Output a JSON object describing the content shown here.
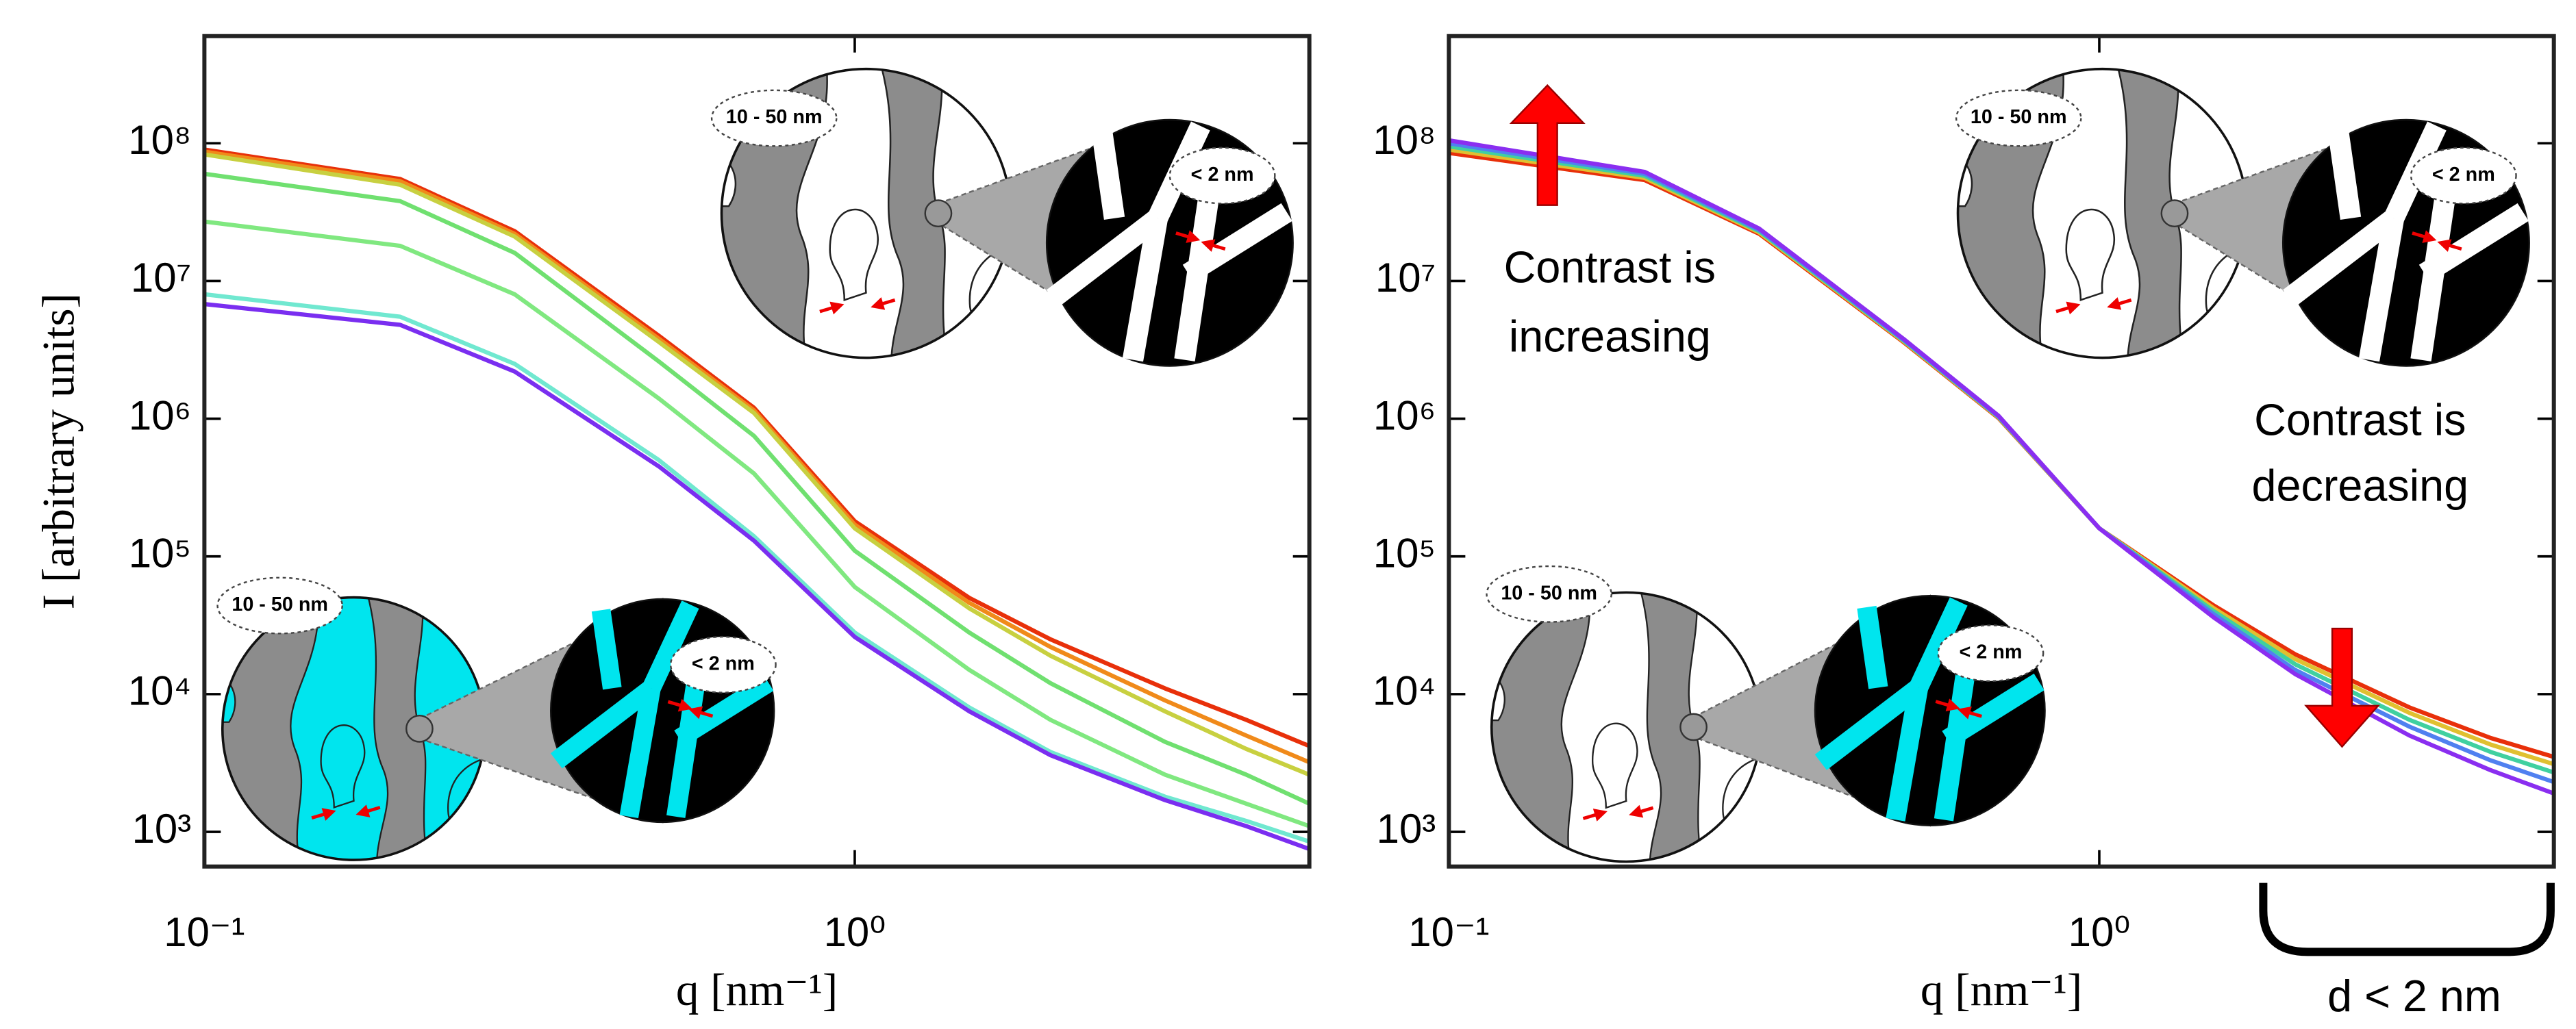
{
  "chart_data": [
    {
      "type": "line",
      "xlabel": "q [nm⁻¹]",
      "ylabel": "I [arbitrary units]",
      "log_x": true,
      "log_y": true,
      "xlim": [
        0.1,
        5
      ],
      "ylim": [
        560,
        600000000
      ],
      "xticks": [
        {
          "value": 0.1,
          "label": "10⁻¹"
        },
        {
          "value": 1,
          "label": "10⁰"
        }
      ],
      "yticks": [
        {
          "value": 1000,
          "label": "10³"
        },
        {
          "value": 10000,
          "label": "10⁴"
        },
        {
          "value": 100000,
          "label": "10⁵"
        },
        {
          "value": 1000000,
          "label": "10⁶"
        },
        {
          "value": 10000000,
          "label": "10⁷"
        },
        {
          "value": 100000000,
          "label": "10⁸"
        }
      ],
      "x": [
        0.1,
        0.2,
        0.3,
        0.5,
        0.7,
        1,
        1.5,
        2,
        3,
        4,
        5
      ],
      "series": [
        {
          "color": "#e8300a",
          "values": [
            90000000,
            55000000,
            23000000,
            4000000,
            1200000,
            180000,
            50000,
            25000,
            11000,
            6500,
            4200
          ]
        },
        {
          "color": "#f08a1a",
          "values": [
            87000000,
            53000000,
            22000000,
            3800000,
            1150000,
            170000,
            46000,
            22000,
            9000,
            5000,
            3200
          ]
        },
        {
          "color": "#c8d040",
          "values": [
            83000000,
            50000000,
            21000000,
            3600000,
            1100000,
            160000,
            42000,
            19000,
            7500,
            4000,
            2600
          ]
        },
        {
          "color": "#70e070",
          "values": [
            60000000,
            38000000,
            16000000,
            2600000,
            750000,
            110000,
            28000,
            12000,
            4500,
            2600,
            1600
          ]
        },
        {
          "color": "#80e880",
          "values": [
            27000000,
            18000000,
            8000000,
            1400000,
            400000,
            60000,
            15000,
            6500,
            2600,
            1600,
            1100
          ]
        },
        {
          "color": "#70e8d0",
          "values": [
            8000000,
            5500000,
            2500000,
            500000,
            140000,
            28000,
            8000,
            3800,
            1800,
            1200,
            850
          ]
        },
        {
          "color": "#7a2ef0",
          "values": [
            6800000,
            4800000,
            2200000,
            450000,
            130000,
            26000,
            7500,
            3600,
            1700,
            1100,
            750
          ]
        }
      ],
      "annotations": [
        "10 - 50 nm",
        "< 2 nm",
        "10 - 50 nm",
        "< 2 nm"
      ]
    },
    {
      "type": "line",
      "xlabel": "q [nm⁻¹]",
      "log_x": true,
      "log_y": true,
      "xlim": [
        0.1,
        5
      ],
      "ylim": [
        560,
        600000000
      ],
      "xticks": [
        {
          "value": 0.1,
          "label": "10⁻¹"
        },
        {
          "value": 1,
          "label": "10⁰"
        }
      ],
      "yticks": [
        {
          "value": 1000,
          "label": "10³"
        },
        {
          "value": 10000,
          "label": "10⁴"
        },
        {
          "value": 100000,
          "label": "10⁵"
        },
        {
          "value": 1000000,
          "label": "10⁶"
        },
        {
          "value": 10000000,
          "label": "10⁷"
        },
        {
          "value": 100000000,
          "label": "10⁸"
        }
      ],
      "x": [
        0.1,
        0.2,
        0.3,
        0.5,
        0.7,
        1,
        1.5,
        2,
        3,
        4,
        5
      ],
      "series": [
        {
          "color": "#e8300a",
          "values": [
            85000000,
            54000000,
            22000000,
            3600000,
            1010000,
            160000,
            44000,
            19500,
            8000,
            4800,
            3500
          ]
        },
        {
          "color": "#e0c030",
          "values": [
            90000000,
            56000000,
            22500000,
            3650000,
            1020000,
            160000,
            42000,
            18000,
            7300,
            4300,
            3100
          ]
        },
        {
          "color": "#40d0a0",
          "values": [
            95000000,
            58000000,
            23000000,
            3700000,
            1030000,
            160000,
            40000,
            16500,
            6500,
            3800,
            2700
          ]
        },
        {
          "color": "#5080f0",
          "values": [
            100000000,
            60000000,
            23500000,
            3750000,
            1040000,
            160000,
            38000,
            15000,
            5800,
            3300,
            2300
          ]
        },
        {
          "color": "#8a2ef0",
          "values": [
            105000000,
            62000000,
            24000000,
            3800000,
            1050000,
            160000,
            36000,
            14000,
            5000,
            2800,
            1900
          ]
        }
      ],
      "annotations": [
        "10 - 50 nm",
        "< 2 nm",
        "10 - 50 nm",
        "< 2 nm",
        "Contrast is",
        "increasing",
        "Contrast is",
        "decreasing",
        "d < 2 nm"
      ]
    }
  ]
}
